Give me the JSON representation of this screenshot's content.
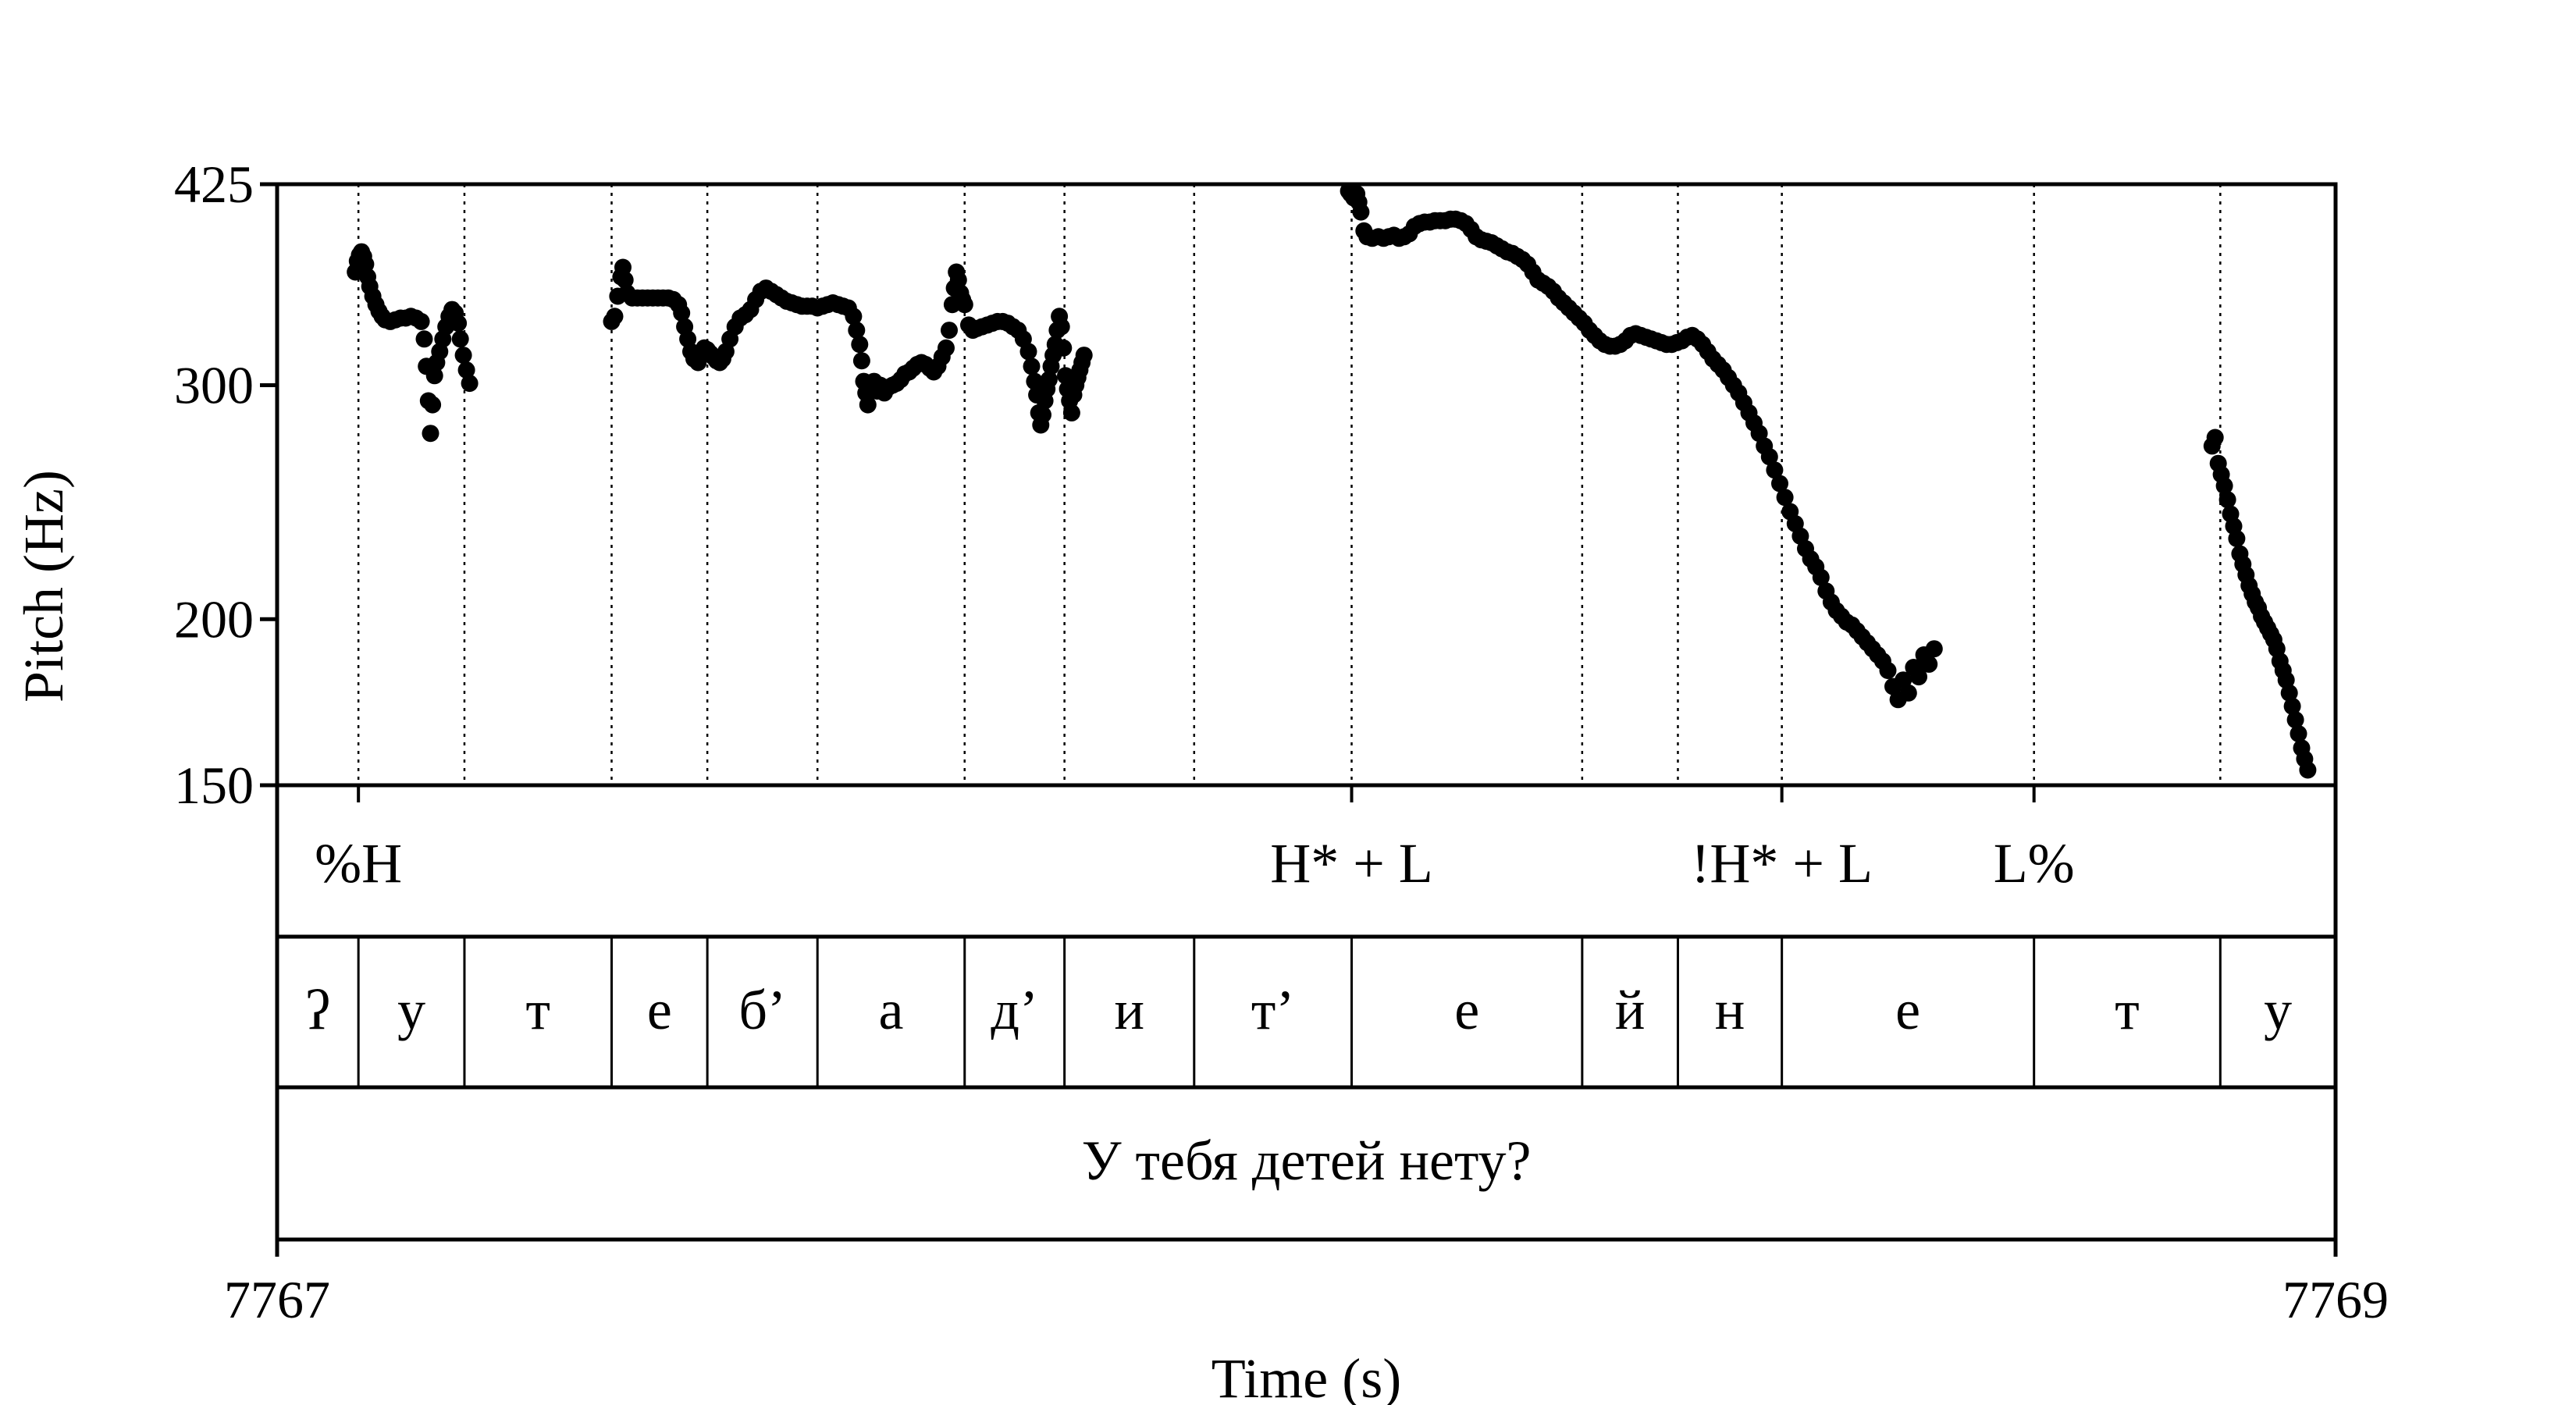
{
  "chart_data": {
    "type": "scatter",
    "xlabel": "Time (s)",
    "ylabel": "Pitch (Hz)",
    "xlim": [
      7767,
      7769
    ],
    "ylim": [
      150,
      425
    ],
    "x_ticks": [
      "7767",
      "7769"
    ],
    "y_ticks": [
      {
        "value": 425,
        "label": "425"
      },
      {
        "value": 300,
        "label": "300"
      },
      {
        "value": 200,
        "label": "200"
      },
      {
        "value": 150,
        "label": "150"
      }
    ],
    "boundaries": [
      7767.079,
      7767.182,
      7767.325,
      7767.418,
      7767.525,
      7767.668,
      7767.765,
      7767.891,
      7768.044,
      7768.268,
      7768.361,
      7768.462,
      7768.707,
      7768.888
    ],
    "tones": [
      {
        "time": 7767.079,
        "label": "%H"
      },
      {
        "time": 7768.044,
        "label": "H* + L"
      },
      {
        "time": 7768.462,
        "label": "!H* + L"
      },
      {
        "time": 7768.707,
        "label": "L%"
      }
    ],
    "segments": [
      {
        "start": 7767.0,
        "end": 7767.079,
        "label": "ʔ"
      },
      {
        "start": 7767.079,
        "end": 7767.182,
        "label": "у"
      },
      {
        "start": 7767.182,
        "end": 7767.325,
        "label": "т"
      },
      {
        "start": 7767.325,
        "end": 7767.418,
        "label": "е"
      },
      {
        "start": 7767.418,
        "end": 7767.525,
        "label": "б’"
      },
      {
        "start": 7767.525,
        "end": 7767.668,
        "label": "а"
      },
      {
        "start": 7767.668,
        "end": 7767.765,
        "label": "д’"
      },
      {
        "start": 7767.765,
        "end": 7767.891,
        "label": "и"
      },
      {
        "start": 7767.891,
        "end": 7768.044,
        "label": "т’"
      },
      {
        "start": 7768.044,
        "end": 7768.268,
        "label": "е"
      },
      {
        "start": 7768.268,
        "end": 7768.361,
        "label": "й"
      },
      {
        "start": 7768.361,
        "end": 7768.462,
        "label": "н"
      },
      {
        "start": 7768.462,
        "end": 7768.707,
        "label": "е"
      },
      {
        "start": 7768.707,
        "end": 7768.888,
        "label": "т"
      },
      {
        "start": 7768.888,
        "end": 7769.0,
        "label": "у"
      }
    ],
    "sentence": "У тебя детей нету?",
    "pitch_contour": [
      [
        7767.076,
        365
      ],
      [
        7767.078,
        372
      ],
      [
        7767.08,
        376
      ],
      [
        7767.082,
        378
      ],
      [
        7767.084,
        375
      ],
      [
        7767.086,
        370
      ],
      [
        7767.088,
        362
      ],
      [
        7767.09,
        356
      ],
      [
        7767.093,
        350
      ],
      [
        7767.096,
        345
      ],
      [
        7767.099,
        341
      ],
      [
        7767.102,
        338
      ],
      [
        7767.105,
        336
      ],
      [
        7767.11,
        335
      ],
      [
        7767.115,
        336
      ],
      [
        7767.12,
        337
      ],
      [
        7767.125,
        337
      ],
      [
        7767.13,
        338
      ],
      [
        7767.135,
        337
      ],
      [
        7767.14,
        335
      ],
      [
        7767.143,
        325
      ],
      [
        7767.145,
        310
      ],
      [
        7767.147,
        292
      ],
      [
        7767.149,
        276
      ],
      [
        7767.151,
        290
      ],
      [
        7767.153,
        305
      ],
      [
        7767.155,
        312
      ],
      [
        7767.158,
        318
      ],
      [
        7767.161,
        325
      ],
      [
        7767.164,
        332
      ],
      [
        7767.167,
        338
      ],
      [
        7767.17,
        342
      ],
      [
        7767.173,
        340
      ],
      [
        7767.176,
        334
      ],
      [
        7767.178,
        325
      ],
      [
        7767.181,
        316
      ],
      [
        7767.184,
        308
      ],
      [
        7767.187,
        301
      ],
      [
        7767.325,
        335
      ],
      [
        7767.328,
        338
      ],
      [
        7767.331,
        350
      ],
      [
        7767.334,
        362
      ],
      [
        7767.336,
        368
      ],
      [
        7767.338,
        360
      ],
      [
        7767.34,
        352
      ],
      [
        7767.345,
        349
      ],
      [
        7767.35,
        349
      ],
      [
        7767.355,
        349
      ],
      [
        7767.36,
        349
      ],
      [
        7767.365,
        349
      ],
      [
        7767.37,
        349
      ],
      [
        7767.375,
        349
      ],
      [
        7767.38,
        349
      ],
      [
        7767.385,
        348
      ],
      [
        7767.39,
        345
      ],
      [
        7767.393,
        340
      ],
      [
        7767.396,
        332
      ],
      [
        7767.399,
        325
      ],
      [
        7767.402,
        318
      ],
      [
        7767.405,
        314
      ],
      [
        7767.409,
        312
      ],
      [
        7767.412,
        317
      ],
      [
        7767.415,
        320
      ],
      [
        7767.418,
        319
      ],
      [
        7767.421,
        317
      ],
      [
        7767.424,
        315
      ],
      [
        7767.427,
        313
      ],
      [
        7767.43,
        312
      ],
      [
        7767.433,
        314
      ],
      [
        7767.436,
        318
      ],
      [
        7767.44,
        325
      ],
      [
        7767.445,
        332
      ],
      [
        7767.45,
        337
      ],
      [
        7767.455,
        339
      ],
      [
        7767.46,
        342
      ],
      [
        7767.465,
        348
      ],
      [
        7767.47,
        353
      ],
      [
        7767.475,
        355
      ],
      [
        7767.48,
        353
      ],
      [
        7767.485,
        351
      ],
      [
        7767.49,
        349
      ],
      [
        7767.495,
        347
      ],
      [
        7767.5,
        346
      ],
      [
        7767.505,
        345
      ],
      [
        7767.51,
        344
      ],
      [
        7767.515,
        344
      ],
      [
        7767.52,
        344
      ],
      [
        7767.525,
        343
      ],
      [
        7767.53,
        344
      ],
      [
        7767.535,
        345
      ],
      [
        7767.54,
        346
      ],
      [
        7767.545,
        345
      ],
      [
        7767.55,
        344
      ],
      [
        7767.555,
        343
      ],
      [
        7767.56,
        338
      ],
      [
        7767.563,
        330
      ],
      [
        7767.566,
        322
      ],
      [
        7767.568,
        313
      ],
      [
        7767.57,
        302
      ],
      [
        7767.572,
        296
      ],
      [
        7767.574,
        290
      ],
      [
        7767.577,
        298
      ],
      [
        7767.58,
        302
      ],
      [
        7767.583,
        297
      ],
      [
        7767.586,
        300
      ],
      [
        7767.59,
        296
      ],
      [
        7767.594,
        299
      ],
      [
        7767.598,
        300
      ],
      [
        7767.602,
        301
      ],
      [
        7767.606,
        303
      ],
      [
        7767.61,
        306
      ],
      [
        7767.614,
        307
      ],
      [
        7767.618,
        309
      ],
      [
        7767.622,
        311
      ],
      [
        7767.626,
        312
      ],
      [
        7767.63,
        311
      ],
      [
        7767.634,
        309
      ],
      [
        7767.638,
        307
      ],
      [
        7767.642,
        310
      ],
      [
        7767.646,
        315
      ],
      [
        7767.65,
        320
      ],
      [
        7767.653,
        330
      ],
      [
        7767.656,
        345
      ],
      [
        7767.658,
        355
      ],
      [
        7767.66,
        365
      ],
      [
        7767.662,
        360
      ],
      [
        7767.664,
        352
      ],
      [
        7767.666,
        348
      ],
      [
        7767.668,
        345
      ],
      [
        7767.672,
        333
      ],
      [
        7767.676,
        330
      ],
      [
        7767.68,
        331
      ],
      [
        7767.685,
        332
      ],
      [
        7767.69,
        333
      ],
      [
        7767.695,
        334
      ],
      [
        7767.7,
        335
      ],
      [
        7767.705,
        335
      ],
      [
        7767.71,
        334
      ],
      [
        7767.715,
        332
      ],
      [
        7767.72,
        330
      ],
      [
        7767.725,
        325
      ],
      [
        7767.73,
        318
      ],
      [
        7767.733,
        310
      ],
      [
        7767.736,
        302
      ],
      [
        7767.738,
        295
      ],
      [
        7767.74,
        286
      ],
      [
        7767.742,
        280
      ],
      [
        7767.744,
        285
      ],
      [
        7767.746,
        292
      ],
      [
        7767.748,
        298
      ],
      [
        7767.75,
        303
      ],
      [
        7767.752,
        310
      ],
      [
        7767.754,
        316
      ],
      [
        7767.756,
        322
      ],
      [
        7767.758,
        330
      ],
      [
        7767.76,
        338
      ],
      [
        7767.762,
        332
      ],
      [
        7767.764,
        320
      ],
      [
        7767.766,
        305
      ],
      [
        7767.768,
        298
      ],
      [
        7767.77,
        292
      ],
      [
        7767.772,
        286
      ],
      [
        7767.774,
        295
      ],
      [
        7767.776,
        300
      ],
      [
        7767.778,
        304
      ],
      [
        7767.78,
        308
      ],
      [
        7767.782,
        312
      ],
      [
        7767.784,
        316
      ],
      [
        7768.041,
        420
      ],
      [
        7768.043,
        418
      ],
      [
        7768.046,
        415
      ],
      [
        7768.049,
        418
      ],
      [
        7768.051,
        412
      ],
      [
        7768.053,
        405
      ],
      [
        7768.056,
        392
      ],
      [
        7768.059,
        388
      ],
      [
        7768.064,
        387
      ],
      [
        7768.07,
        388
      ],
      [
        7768.075,
        387
      ],
      [
        7768.08,
        388
      ],
      [
        7768.085,
        389
      ],
      [
        7768.09,
        387
      ],
      [
        7768.095,
        388
      ],
      [
        7768.1,
        390
      ],
      [
        7768.105,
        395
      ],
      [
        7768.11,
        397
      ],
      [
        7768.115,
        398
      ],
      [
        7768.12,
        398
      ],
      [
        7768.125,
        399
      ],
      [
        7768.13,
        399
      ],
      [
        7768.135,
        399
      ],
      [
        7768.14,
        400
      ],
      [
        7768.145,
        400
      ],
      [
        7768.15,
        399
      ],
      [
        7768.155,
        397
      ],
      [
        7768.16,
        393
      ],
      [
        7768.165,
        388
      ],
      [
        7768.17,
        386
      ],
      [
        7768.175,
        385
      ],
      [
        7768.18,
        384
      ],
      [
        7768.185,
        382
      ],
      [
        7768.19,
        380
      ],
      [
        7768.195,
        378
      ],
      [
        7768.2,
        377
      ],
      [
        7768.205,
        375
      ],
      [
        7768.21,
        373
      ],
      [
        7768.215,
        370
      ],
      [
        7768.22,
        365
      ],
      [
        7768.225,
        360
      ],
      [
        7768.23,
        358
      ],
      [
        7768.235,
        356
      ],
      [
        7768.24,
        353
      ],
      [
        7768.245,
        349
      ],
      [
        7768.25,
        346
      ],
      [
        7768.255,
        343
      ],
      [
        7768.26,
        340
      ],
      [
        7768.265,
        337
      ],
      [
        7768.27,
        334
      ],
      [
        7768.275,
        330
      ],
      [
        7768.28,
        327
      ],
      [
        7768.285,
        324
      ],
      [
        7768.29,
        322
      ],
      [
        7768.295,
        321
      ],
      [
        7768.3,
        321
      ],
      [
        7768.305,
        322
      ],
      [
        7768.31,
        324
      ],
      [
        7768.315,
        327
      ],
      [
        7768.32,
        328
      ],
      [
        7768.325,
        327
      ],
      [
        7768.33,
        326
      ],
      [
        7768.335,
        325
      ],
      [
        7768.34,
        324
      ],
      [
        7768.345,
        323
      ],
      [
        7768.35,
        322
      ],
      [
        7768.355,
        322
      ],
      [
        7768.36,
        323
      ],
      [
        7768.365,
        324
      ],
      [
        7768.37,
        326
      ],
      [
        7768.375,
        327
      ],
      [
        7768.38,
        325
      ],
      [
        7768.385,
        322
      ],
      [
        7768.39,
        318
      ],
      [
        7768.395,
        314
      ],
      [
        7768.4,
        311
      ],
      [
        7768.405,
        308
      ],
      [
        7768.41,
        304
      ],
      [
        7768.415,
        300
      ],
      [
        7768.42,
        296
      ],
      [
        7768.425,
        291
      ],
      [
        7768.43,
        286
      ],
      [
        7768.435,
        281
      ],
      [
        7768.44,
        276
      ],
      [
        7768.445,
        270
      ],
      [
        7768.45,
        265
      ],
      [
        7768.455,
        259
      ],
      [
        7768.46,
        253
      ],
      [
        7768.465,
        247
      ],
      [
        7768.47,
        241
      ],
      [
        7768.475,
        236
      ],
      [
        7768.48,
        231
      ],
      [
        7768.485,
        226
      ],
      [
        7768.49,
        222
      ],
      [
        7768.495,
        219
      ],
      [
        7768.5,
        215
      ],
      [
        7768.505,
        210
      ],
      [
        7768.51,
        206
      ],
      [
        7768.515,
        203
      ],
      [
        7768.52,
        201
      ],
      [
        7768.525,
        199
      ],
      [
        7768.53,
        198
      ],
      [
        7768.535,
        196
      ],
      [
        7768.54,
        194
      ],
      [
        7768.545,
        192
      ],
      [
        7768.55,
        190
      ],
      [
        7768.555,
        188
      ],
      [
        7768.56,
        186
      ],
      [
        7768.565,
        183
      ],
      [
        7768.57,
        178
      ],
      [
        7768.575,
        174
      ],
      [
        7768.58,
        180
      ],
      [
        7768.585,
        176
      ],
      [
        7768.59,
        184
      ],
      [
        7768.595,
        181
      ],
      [
        7768.6,
        188
      ],
      [
        7768.605,
        185
      ],
      [
        7768.61,
        190
      ],
      [
        7768.88,
        270
      ],
      [
        7768.883,
        274
      ],
      [
        7768.886,
        262
      ],
      [
        7768.889,
        257
      ],
      [
        7768.892,
        252
      ],
      [
        7768.895,
        246
      ],
      [
        7768.898,
        240
      ],
      [
        7768.901,
        235
      ],
      [
        7768.904,
        230
      ],
      [
        7768.907,
        224
      ],
      [
        7768.91,
        220
      ],
      [
        7768.913,
        216
      ],
      [
        7768.916,
        212
      ],
      [
        7768.919,
        209
      ],
      [
        7768.922,
        206
      ],
      [
        7768.925,
        204
      ],
      [
        7768.928,
        201
      ],
      [
        7768.931,
        199
      ],
      [
        7768.934,
        197
      ],
      [
        7768.937,
        195
      ],
      [
        7768.94,
        193
      ],
      [
        7768.943,
        190
      ],
      [
        7768.946,
        186
      ],
      [
        7768.949,
        183
      ],
      [
        7768.952,
        180
      ],
      [
        7768.955,
        176
      ],
      [
        7768.958,
        172
      ],
      [
        7768.961,
        168
      ],
      [
        7768.964,
        164
      ],
      [
        7768.967,
        160
      ],
      [
        7768.97,
        157
      ],
      [
        7768.973,
        154
      ]
    ]
  }
}
